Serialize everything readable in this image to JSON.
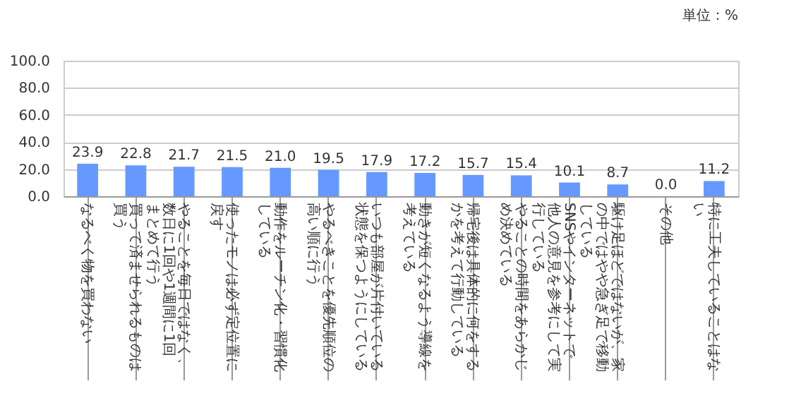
{
  "chart_data": {
    "type": "bar",
    "annotations": [
      "単位：%"
    ],
    "categories": [
      "なるべく物を買わない",
      "買って済ませられるものは買う",
      "やることを毎日ではなく、数日に1回や1週間に1回まとめて行う",
      "使ったモノは必ず定位置に戻す",
      "動作をルーチン化・習慣化している",
      "やるべきことを優先順位の高い順に行う",
      "いつも部屋が片付いている状態を保つようにしている",
      "動きが短くなるよう導線を考えている",
      "帰宅後は具体的に何をするかを考えて行動している",
      "やることの時間をあらかじめ決めている",
      "SNSやインターネットで他人の意見を参考にして実行している",
      "駆け足ほどではないが、家の中ではやや急ぎ足で移動している",
      "その他",
      "特に工夫していることはない"
    ],
    "values": [
      23.9,
      22.8,
      21.7,
      21.5,
      21.0,
      19.5,
      17.9,
      17.2,
      15.7,
      15.4,
      10.1,
      8.7,
      0.0,
      11.2
    ],
    "value_labels": [
      "23.9",
      "22.8",
      "21.7",
      "21.5",
      "21.0",
      "19.5",
      "17.9",
      "17.2",
      "15.7",
      "15.4",
      "10.1",
      "8.7",
      "0.0",
      "11.2"
    ],
    "color": "#6699ff",
    "ylim": [
      0,
      100
    ],
    "yticks": [
      {
        "value": 0,
        "label": "0.0"
      },
      {
        "value": 20,
        "label": "20.0"
      },
      {
        "value": 40,
        "label": "40.0"
      },
      {
        "value": 60,
        "label": "60.0"
      },
      {
        "value": 80,
        "label": "80.0"
      },
      {
        "value": 100,
        "label": "100.0"
      }
    ],
    "grid": "y"
  }
}
